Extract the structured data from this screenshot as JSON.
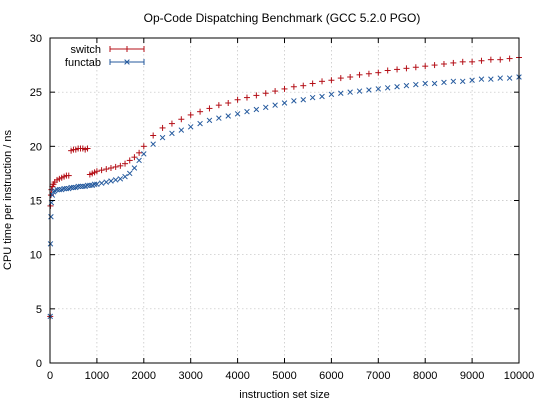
{
  "chart_data": {
    "type": "scatter",
    "title": "Op-Code Dispatching Benchmark (GCC 5.2.0 PGO)",
    "xlabel": "instruction set size",
    "ylabel": "CPU time per instruction / ns",
    "xlim": [
      0,
      10000
    ],
    "ylim": [
      0,
      30
    ],
    "xticks": [
      0,
      1000,
      2000,
      3000,
      4000,
      5000,
      6000,
      7000,
      8000,
      9000,
      10000
    ],
    "yticks": [
      0,
      5,
      10,
      15,
      20,
      25,
      30
    ],
    "grid": true,
    "legend_position": "top-left",
    "series": [
      {
        "name": "switch",
        "color": "#b40f17",
        "marker": "plus",
        "x": [
          5,
          10,
          20,
          30,
          50,
          75,
          100,
          150,
          200,
          250,
          300,
          350,
          400,
          450,
          500,
          550,
          600,
          650,
          700,
          750,
          800,
          850,
          900,
          950,
          1000,
          1100,
          1200,
          1300,
          1400,
          1500,
          1600,
          1700,
          1800,
          1900,
          2000,
          2200,
          2400,
          2600,
          2800,
          3000,
          3200,
          3400,
          3600,
          3800,
          4000,
          4200,
          4400,
          4600,
          4800,
          5000,
          5200,
          5400,
          5600,
          5800,
          6000,
          6200,
          6400,
          6600,
          6800,
          7000,
          7200,
          7400,
          7600,
          7800,
          8000,
          8200,
          8400,
          8600,
          8800,
          9000,
          9200,
          9400,
          9600,
          9800,
          10000
        ],
        "y": [
          4.3,
          14.5,
          15.5,
          16.0,
          16.3,
          16.5,
          16.7,
          16.9,
          17.0,
          17.1,
          17.2,
          17.3,
          17.3,
          19.6,
          19.7,
          19.7,
          19.8,
          19.8,
          19.8,
          19.7,
          19.8,
          17.4,
          17.5,
          17.6,
          17.7,
          17.8,
          17.9,
          18.0,
          18.1,
          18.2,
          18.4,
          18.7,
          19.0,
          19.4,
          20.0,
          21.0,
          21.7,
          22.1,
          22.5,
          22.9,
          23.2,
          23.5,
          23.8,
          24.0,
          24.3,
          24.5,
          24.7,
          24.9,
          25.1,
          25.3,
          25.5,
          25.6,
          25.8,
          26.0,
          26.1,
          26.3,
          26.4,
          26.6,
          26.7,
          26.8,
          27.0,
          27.1,
          27.2,
          27.3,
          27.4,
          27.5,
          27.6,
          27.7,
          27.8,
          27.8,
          27.9,
          28.0,
          28.0,
          28.1,
          28.2
        ]
      },
      {
        "name": "functab",
        "color": "#255a9e",
        "marker": "cross",
        "x": [
          5,
          10,
          20,
          30,
          50,
          75,
          100,
          150,
          200,
          250,
          300,
          350,
          400,
          450,
          500,
          550,
          600,
          650,
          700,
          750,
          800,
          850,
          900,
          950,
          1000,
          1100,
          1200,
          1300,
          1400,
          1500,
          1600,
          1700,
          1800,
          1900,
          2000,
          2200,
          2400,
          2600,
          2800,
          3000,
          3200,
          3400,
          3600,
          3800,
          4000,
          4200,
          4400,
          4600,
          4800,
          5000,
          5200,
          5400,
          5600,
          5800,
          6000,
          6200,
          6400,
          6600,
          6800,
          7000,
          7200,
          7400,
          7600,
          7800,
          8000,
          8200,
          8400,
          8600,
          8800,
          9000,
          9200,
          9400,
          9600,
          9800,
          10000
        ],
        "y": [
          4.3,
          11.0,
          13.5,
          14.8,
          15.5,
          15.8,
          15.9,
          16.0,
          16.0,
          16.0,
          16.1,
          16.1,
          16.1,
          16.2,
          16.2,
          16.2,
          16.3,
          16.3,
          16.3,
          16.3,
          16.4,
          16.4,
          16.4,
          16.5,
          16.5,
          16.6,
          16.7,
          16.8,
          16.9,
          17.0,
          17.2,
          17.5,
          18.0,
          18.7,
          19.3,
          20.2,
          20.8,
          21.2,
          21.5,
          21.8,
          22.1,
          22.4,
          22.6,
          22.8,
          23.0,
          23.2,
          23.4,
          23.6,
          23.8,
          24.0,
          24.2,
          24.3,
          24.5,
          24.6,
          24.8,
          24.9,
          25.0,
          25.1,
          25.2,
          25.3,
          25.4,
          25.5,
          25.6,
          25.7,
          25.8,
          25.8,
          25.9,
          26.0,
          26.0,
          26.1,
          26.2,
          26.2,
          26.3,
          26.3,
          26.4
        ]
      }
    ]
  }
}
